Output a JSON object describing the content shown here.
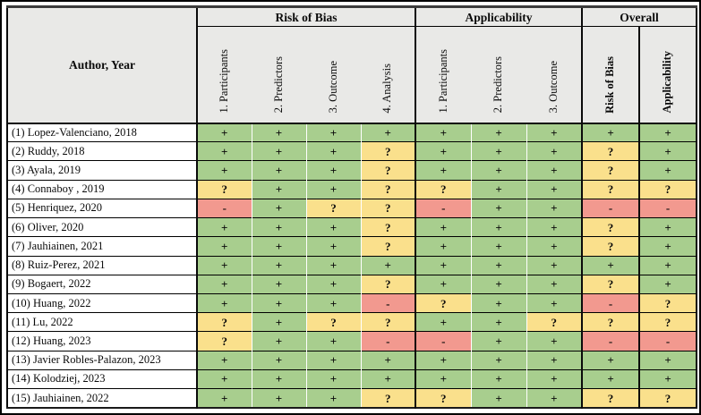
{
  "figure": {
    "corner_header": "Author, Year",
    "groups": [
      {
        "label": "Risk of Bias",
        "bold": false,
        "columns": [
          "1. Participants",
          "2. Predictors",
          "3. Outcome",
          "4. Analysis"
        ]
      },
      {
        "label": "Applicability",
        "bold": false,
        "columns": [
          "1. Participants",
          "2. Predictors",
          "3. Outcome"
        ]
      },
      {
        "label": "Overall",
        "bold": true,
        "columns": [
          "Risk of Bias",
          "Applicability"
        ]
      }
    ],
    "symbols": {
      "low_risk": "+",
      "unclear": "?",
      "high_risk": "-"
    },
    "colors": {
      "low_risk": "#A8CE8E",
      "unclear": "#FAE08C",
      "high_risk": "#F2998F",
      "header_bg": "#E9E9E7"
    },
    "rows": [
      {
        "study": "(1) Lopez-Valenciano, 2018",
        "values": [
          "+",
          "+",
          "+",
          "+",
          "+",
          "+",
          "+",
          "+",
          "+"
        ]
      },
      {
        "study": "(2) Ruddy, 2018",
        "values": [
          "+",
          "+",
          "+",
          "?",
          "+",
          "+",
          "+",
          "?",
          "+"
        ]
      },
      {
        "study": "(3) Ayala, 2019",
        "values": [
          "+",
          "+",
          "+",
          "?",
          "+",
          "+",
          "+",
          "?",
          "+"
        ]
      },
      {
        "study": "(4) Connaboy , 2019",
        "values": [
          "?",
          "+",
          "+",
          "?",
          "?",
          "+",
          "+",
          "?",
          "?"
        ]
      },
      {
        "study": "(5) Henriquez, 2020",
        "values": [
          "-",
          "+",
          "?",
          "?",
          "-",
          "+",
          "+",
          "-",
          "-"
        ]
      },
      {
        "study": "(6) Oliver, 2020",
        "values": [
          "+",
          "+",
          "+",
          "?",
          "+",
          "+",
          "+",
          "?",
          "+"
        ]
      },
      {
        "study": "(7) Jauhiainen, 2021",
        "values": [
          "+",
          "+",
          "+",
          "?",
          "+",
          "+",
          "+",
          "?",
          "+"
        ]
      },
      {
        "study": "(8) Ruiz-Perez, 2021",
        "values": [
          "+",
          "+",
          "+",
          "+",
          "+",
          "+",
          "+",
          "+",
          "+"
        ]
      },
      {
        "study": "(9) Bogaert, 2022",
        "values": [
          "+",
          "+",
          "+",
          "?",
          "+",
          "+",
          "+",
          "?",
          "+"
        ]
      },
      {
        "study": "(10) Huang, 2022",
        "values": [
          "+",
          "+",
          "+",
          "-",
          "?",
          "+",
          "+",
          "-",
          "?"
        ]
      },
      {
        "study": "(11) Lu, 2022",
        "values": [
          "?",
          "+",
          "?",
          "?",
          "+",
          "+",
          "?",
          "?",
          "?"
        ]
      },
      {
        "study": "(12) Huang, 2023",
        "values": [
          "?",
          "+",
          "+",
          "-",
          "-",
          "+",
          "+",
          "-",
          "-"
        ]
      },
      {
        "study": "(13) Javier Robles-Palazon, 2023",
        "values": [
          "+",
          "+",
          "+",
          "+",
          "+",
          "+",
          "+",
          "+",
          "+"
        ]
      },
      {
        "study": "(14) Kolodziej, 2023",
        "values": [
          "+",
          "+",
          "+",
          "+",
          "+",
          "+",
          "+",
          "+",
          "+"
        ]
      },
      {
        "study": "(15) Jauhiainen, 2022",
        "values": [
          "+",
          "+",
          "+",
          "?",
          "?",
          "+",
          "+",
          "?",
          "?"
        ]
      }
    ]
  }
}
